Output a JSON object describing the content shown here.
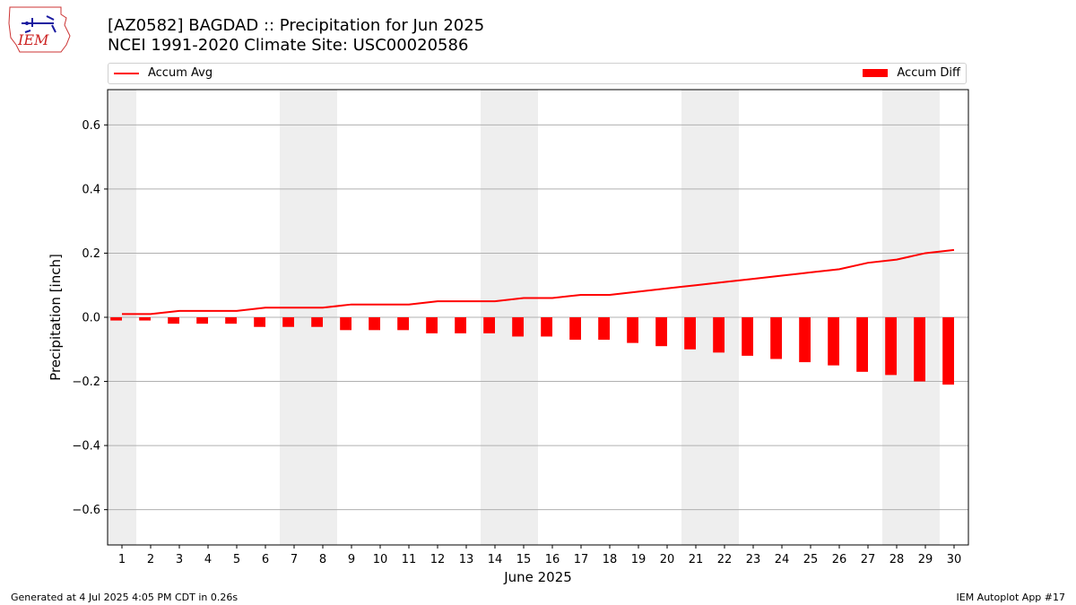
{
  "header": {
    "title_line1": "[AZ0582] BAGDAD :: Precipitation for Jun 2025",
    "title_line2": "NCEI 1991-2020 Climate Site: USC00020586",
    "logo_text": "IEM"
  },
  "legend": {
    "avg_label": "Accum Avg",
    "diff_label": "Accum Diff",
    "placement": "top"
  },
  "footer": {
    "left": "Generated at 4 Jul 2025 4:05 PM CDT in 0.26s",
    "right": "IEM Autoplot App #17"
  },
  "colors": {
    "line": "#ff0000",
    "bar": "#ff0000",
    "weekend_shade": "#eeeeee",
    "grid": "#b0b0b0"
  },
  "chart_data": {
    "type": "bar",
    "xlabel": "June 2025",
    "ylabel": "Precipitation [inch]",
    "ylim": [
      -0.71,
      0.71
    ],
    "yticks": [
      -0.6,
      -0.4,
      -0.2,
      0.0,
      0.2,
      0.4,
      0.6
    ],
    "ytick_labels": [
      "−0.6",
      "−0.4",
      "−0.2",
      "0.0",
      "0.2",
      "0.4",
      "0.6"
    ],
    "xlim": [
      0.5,
      30.5
    ],
    "grid": "horizontal",
    "x": [
      1,
      2,
      3,
      4,
      5,
      6,
      7,
      8,
      9,
      10,
      11,
      12,
      13,
      14,
      15,
      16,
      17,
      18,
      19,
      20,
      21,
      22,
      23,
      24,
      25,
      26,
      27,
      28,
      29,
      30
    ],
    "shaded_days": [
      1,
      7,
      8,
      14,
      15,
      21,
      22,
      28,
      29
    ],
    "series": [
      {
        "name": "Accum Avg",
        "kind": "line",
        "values": [
          0.01,
          0.01,
          0.02,
          0.02,
          0.02,
          0.03,
          0.03,
          0.03,
          0.04,
          0.04,
          0.04,
          0.05,
          0.05,
          0.05,
          0.06,
          0.06,
          0.07,
          0.07,
          0.08,
          0.09,
          0.1,
          0.11,
          0.12,
          0.13,
          0.14,
          0.15,
          0.17,
          0.18,
          0.2,
          0.21
        ]
      },
      {
        "name": "Accum Diff",
        "kind": "bar",
        "values": [
          -0.01,
          -0.01,
          -0.02,
          -0.02,
          -0.02,
          -0.03,
          -0.03,
          -0.03,
          -0.04,
          -0.04,
          -0.04,
          -0.05,
          -0.05,
          -0.05,
          -0.06,
          -0.06,
          -0.07,
          -0.07,
          -0.08,
          -0.09,
          -0.1,
          -0.11,
          -0.12,
          -0.13,
          -0.14,
          -0.15,
          -0.17,
          -0.18,
          -0.2,
          -0.21
        ]
      }
    ]
  }
}
